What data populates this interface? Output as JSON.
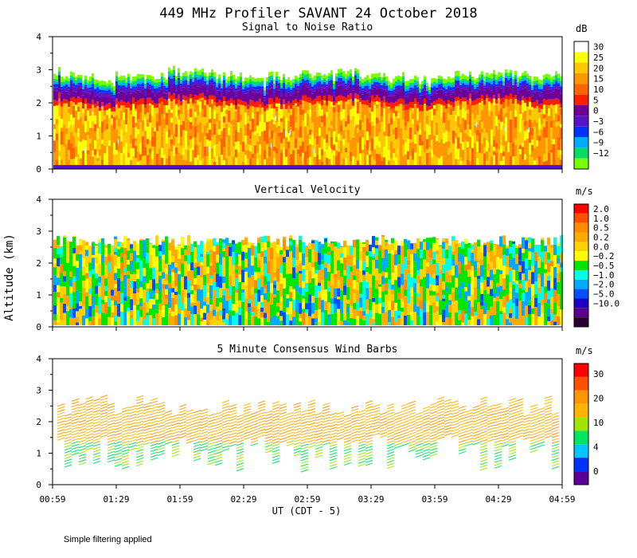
{
  "figure": {
    "title": "449 MHz Profiler SAVANT 24 October 2018",
    "ylabel": "Altitude (km)",
    "xlabel": "UT  (CDT - 5)",
    "footnote": "Simple filtering applied",
    "x_ticks": [
      "00:59",
      "01:29",
      "01:59",
      "02:29",
      "02:59",
      "03:29",
      "03:59",
      "04:29",
      "04:59"
    ],
    "y_ticks": [
      "0",
      "1",
      "2",
      "3",
      "4"
    ]
  },
  "chart_data": [
    {
      "type": "heatmap",
      "title": "Signal to Noise Ratio",
      "colorbar_unit": "dB",
      "colorbar_labels": [
        "30",
        "25",
        "20",
        "15",
        "10",
        "5",
        "0",
        "−3",
        "−6",
        "−9",
        "−12"
      ],
      "colorbar_colors": [
        "#ffffff",
        "#ffff00",
        "#ffc800",
        "#ff9600",
        "#ff6400",
        "#ff1e00",
        "#6e0096",
        "#5a14c8",
        "#0032ff",
        "#00aaff",
        "#00dc64",
        "#78ff00"
      ],
      "xlim_hours": [
        0.983,
        4.983
      ],
      "ylim_km": [
        0,
        4
      ],
      "signal_top_km": 2.7,
      "echo_top_km": 3.0
    },
    {
      "type": "heatmap",
      "title": "Vertical Velocity",
      "colorbar_unit": "m/s",
      "colorbar_labels": [
        "2.0",
        "1.0",
        "0.5",
        "0.2",
        "0.0",
        "−0.2",
        "−0.5",
        "−1.0",
        "−2.0",
        "−5.0",
        "−10.0"
      ],
      "colorbar_colors": [
        "#ff0000",
        "#ff5000",
        "#ff8c00",
        "#ffaa00",
        "#ffd200",
        "#ffff00",
        "#00e600",
        "#00ffe6",
        "#00aaff",
        "#0050ff",
        "#1e00c8",
        "#5a0096",
        "#280032"
      ],
      "xlim_hours": [
        0.983,
        4.983
      ],
      "ylim_km": [
        0,
        4
      ],
      "data_top_km": 2.7
    },
    {
      "type": "scatter",
      "title": "5 Minute Consensus Wind Barbs",
      "colorbar_unit": "m/s",
      "colorbar_labels": [
        "30",
        "20",
        "10",
        "4",
        "0"
      ],
      "colorbar_colors": [
        "#ff0000",
        "#ff5000",
        "#ff9600",
        "#ffb400",
        "#a0e600",
        "#00e664",
        "#00c8ff",
        "#0032ff",
        "#5a0096"
      ],
      "xlim_hours": [
        0.983,
        4.983
      ],
      "ylim_km": [
        0,
        4
      ],
      "barb_top_km": 2.8
    }
  ]
}
